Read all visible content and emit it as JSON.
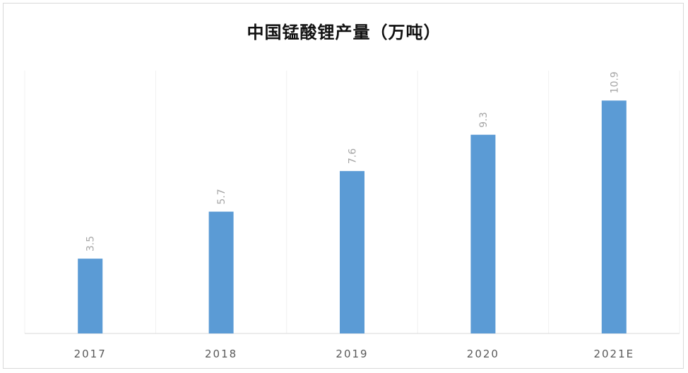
{
  "chart_data": {
    "type": "bar",
    "title": "中国锰酸锂产量（万吨）",
    "xlabel": "",
    "ylabel": "",
    "categories": [
      "2017",
      "2018",
      "2019",
      "2020",
      "2021E"
    ],
    "values": [
      3.5,
      5.7,
      7.6,
      9.3,
      10.9
    ],
    "value_labels": [
      "3.5",
      "5.7",
      "7.6",
      "9.3",
      "10.9"
    ],
    "ylim": [
      0,
      12.3
    ],
    "bar_color": "#5b9bd5",
    "label_color": "#a6a6a6",
    "grid": "vertical category separators",
    "legend": "none"
  }
}
